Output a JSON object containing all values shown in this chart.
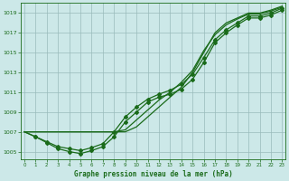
{
  "title": "Graphe pression niveau de la mer (hPa)",
  "bg_color": "#cce8e8",
  "grid_color": "#99bbbb",
  "line_color": "#1a6b1a",
  "yticks": [
    1005,
    1007,
    1009,
    1011,
    1013,
    1015,
    1017,
    1019
  ],
  "xticks": [
    0,
    1,
    2,
    3,
    4,
    5,
    6,
    7,
    8,
    9,
    10,
    11,
    12,
    13,
    14,
    15,
    16,
    17,
    18,
    19,
    20,
    21,
    22,
    23
  ],
  "xlim": [
    -0.3,
    23.3
  ],
  "ylim": [
    1004.2,
    1020.0
  ],
  "line1_x": [
    0,
    1,
    2,
    3,
    4,
    5,
    6,
    7,
    8,
    9,
    10,
    11,
    12,
    13,
    14,
    15,
    16,
    17,
    18,
    19,
    20,
    21,
    22,
    23
  ],
  "line1_y": [
    1007.0,
    1007.0,
    1007.0,
    1007.0,
    1007.0,
    1007.0,
    1007.0,
    1007.0,
    1007.0,
    1007.0,
    1007.5,
    1008.5,
    1009.5,
    1010.5,
    1011.5,
    1013.0,
    1015.0,
    1017.0,
    1018.0,
    1018.5,
    1019.0,
    1019.0,
    1019.3,
    1019.7
  ],
  "line2_x": [
    0,
    1,
    2,
    3,
    4,
    5,
    6,
    7,
    8,
    9,
    10,
    11,
    12,
    13,
    14,
    15,
    16,
    17,
    18,
    19,
    20,
    21,
    22,
    23
  ],
  "line2_y": [
    1007.0,
    1007.0,
    1007.0,
    1007.0,
    1007.0,
    1007.0,
    1007.0,
    1007.0,
    1007.0,
    1007.2,
    1008.2,
    1009.2,
    1010.2,
    1011.0,
    1012.0,
    1013.2,
    1015.2,
    1016.8,
    1017.8,
    1018.4,
    1018.9,
    1018.9,
    1019.2,
    1019.6
  ],
  "line3_x": [
    0,
    1,
    2,
    3,
    4,
    5,
    6,
    7,
    8,
    9,
    10,
    11,
    12,
    13,
    14,
    15,
    16,
    17,
    18,
    19,
    20,
    21,
    22,
    23
  ],
  "line3_y": [
    1007.0,
    1006.5,
    1006.0,
    1005.5,
    1005.3,
    1005.1,
    1005.4,
    1005.8,
    1007.0,
    1008.5,
    1009.5,
    1010.3,
    1010.8,
    1011.2,
    1011.8,
    1012.8,
    1014.5,
    1016.3,
    1017.3,
    1018.0,
    1018.7,
    1018.7,
    1019.0,
    1019.5
  ],
  "line4_x": [
    0,
    1,
    2,
    3,
    4,
    5,
    6,
    7,
    8,
    9,
    10,
    11,
    12,
    13,
    14,
    15,
    16,
    17,
    18,
    19,
    20,
    21,
    22,
    23
  ],
  "line4_y": [
    1007.0,
    1006.5,
    1005.9,
    1005.3,
    1005.0,
    1004.8,
    1005.1,
    1005.5,
    1006.5,
    1008.0,
    1009.0,
    1010.0,
    1010.5,
    1010.8,
    1011.3,
    1012.3,
    1014.0,
    1016.0,
    1017.0,
    1017.8,
    1018.5,
    1018.5,
    1018.8,
    1019.3
  ],
  "marker_x": [
    1,
    2,
    3,
    4,
    5,
    6,
    7,
    8,
    9,
    10,
    11,
    12,
    13,
    14,
    15,
    16,
    17,
    18,
    19,
    20,
    21,
    22,
    23
  ]
}
